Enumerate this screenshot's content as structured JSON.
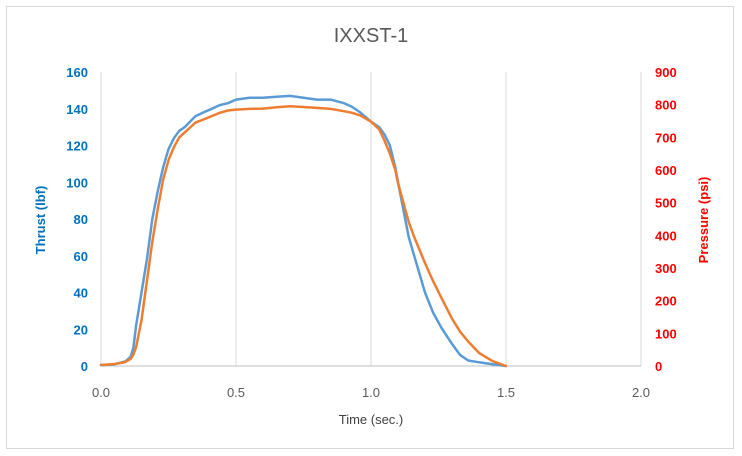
{
  "chart_data": {
    "type": "line",
    "title": "IXXST-1",
    "xlabel": "Time (sec.)",
    "ylabel_left": "Thrust (lbf)",
    "ylabel_right": "Pressure (psi)",
    "xlim": [
      0,
      2.0
    ],
    "ylim_left": [
      0,
      160
    ],
    "ylim_right": [
      0,
      900
    ],
    "x_ticks": [
      "0.0",
      "0.5",
      "1.0",
      "1.5",
      "2.0"
    ],
    "y_left_ticks": [
      "0",
      "20",
      "40",
      "60",
      "80",
      "100",
      "120",
      "140",
      "160"
    ],
    "y_right_ticks": [
      "0",
      "100",
      "200",
      "300",
      "400",
      "500",
      "600",
      "700",
      "800",
      "900"
    ],
    "grid": "vertical",
    "colors": {
      "thrust": "#5b9bd5",
      "pressure": "#ed7d31",
      "left_axis": "#0070c0",
      "right_axis": "#ff0000"
    },
    "series": [
      {
        "key": "thrust",
        "axis": "left",
        "x": [
          0.0,
          0.05,
          0.09,
          0.11,
          0.12,
          0.13,
          0.15,
          0.17,
          0.19,
          0.21,
          0.23,
          0.25,
          0.27,
          0.29,
          0.31,
          0.33,
          0.35,
          0.38,
          0.41,
          0.44,
          0.47,
          0.5,
          0.55,
          0.6,
          0.65,
          0.7,
          0.75,
          0.8,
          0.85,
          0.9,
          0.93,
          0.96,
          1.0,
          1.03,
          1.05,
          1.07,
          1.09,
          1.1,
          1.12,
          1.14,
          1.16,
          1.18,
          1.2,
          1.23,
          1.26,
          1.3,
          1.33,
          1.36,
          1.4,
          1.45,
          1.5
        ],
        "y": [
          0.5,
          1,
          2.5,
          5,
          10,
          22,
          40,
          58,
          80,
          95,
          108,
          118,
          124,
          128,
          130,
          133,
          136,
          138,
          140,
          142,
          143,
          145,
          146,
          146,
          146.5,
          147,
          146,
          145,
          145,
          143,
          141,
          138,
          133,
          130,
          126,
          120,
          108,
          100,
          85,
          70,
          60,
          50,
          40,
          29,
          21,
          12,
          6,
          3,
          2,
          1,
          0
        ]
      },
      {
        "key": "pressure",
        "axis": "right",
        "x": [
          0.0,
          0.05,
          0.09,
          0.11,
          0.12,
          0.13,
          0.15,
          0.17,
          0.19,
          0.21,
          0.23,
          0.25,
          0.27,
          0.29,
          0.31,
          0.33,
          0.35,
          0.38,
          0.41,
          0.44,
          0.47,
          0.5,
          0.55,
          0.6,
          0.65,
          0.7,
          0.75,
          0.8,
          0.85,
          0.9,
          0.93,
          0.96,
          1.0,
          1.03,
          1.05,
          1.07,
          1.09,
          1.1,
          1.12,
          1.14,
          1.16,
          1.18,
          1.2,
          1.23,
          1.26,
          1.3,
          1.33,
          1.36,
          1.4,
          1.45,
          1.5
        ],
        "y": [
          3,
          6,
          12,
          22,
          35,
          58,
          140,
          260,
          380,
          480,
          570,
          630,
          670,
          700,
          715,
          730,
          745,
          755,
          765,
          775,
          782,
          785,
          787,
          788,
          792,
          795,
          793,
          790,
          787,
          780,
          775,
          767,
          748,
          725,
          690,
          650,
          600,
          560,
          500,
          440,
          395,
          355,
          315,
          260,
          210,
          145,
          105,
          75,
          40,
          15,
          0
        ]
      }
    ]
  }
}
